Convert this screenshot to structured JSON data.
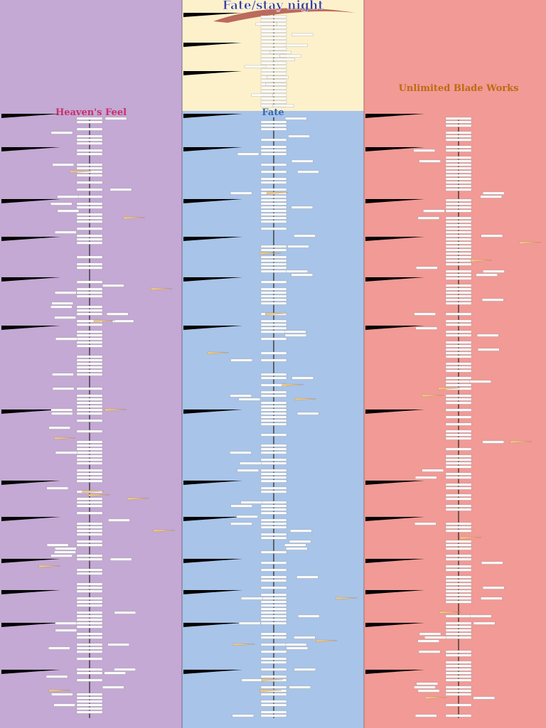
{
  "header": {
    "title": "Fate/stay night"
  },
  "routes": [
    {
      "name": "Heaven's Feel"
    },
    {
      "name": "Fate"
    },
    {
      "name": "Unlimited Blade Works"
    }
  ]
}
